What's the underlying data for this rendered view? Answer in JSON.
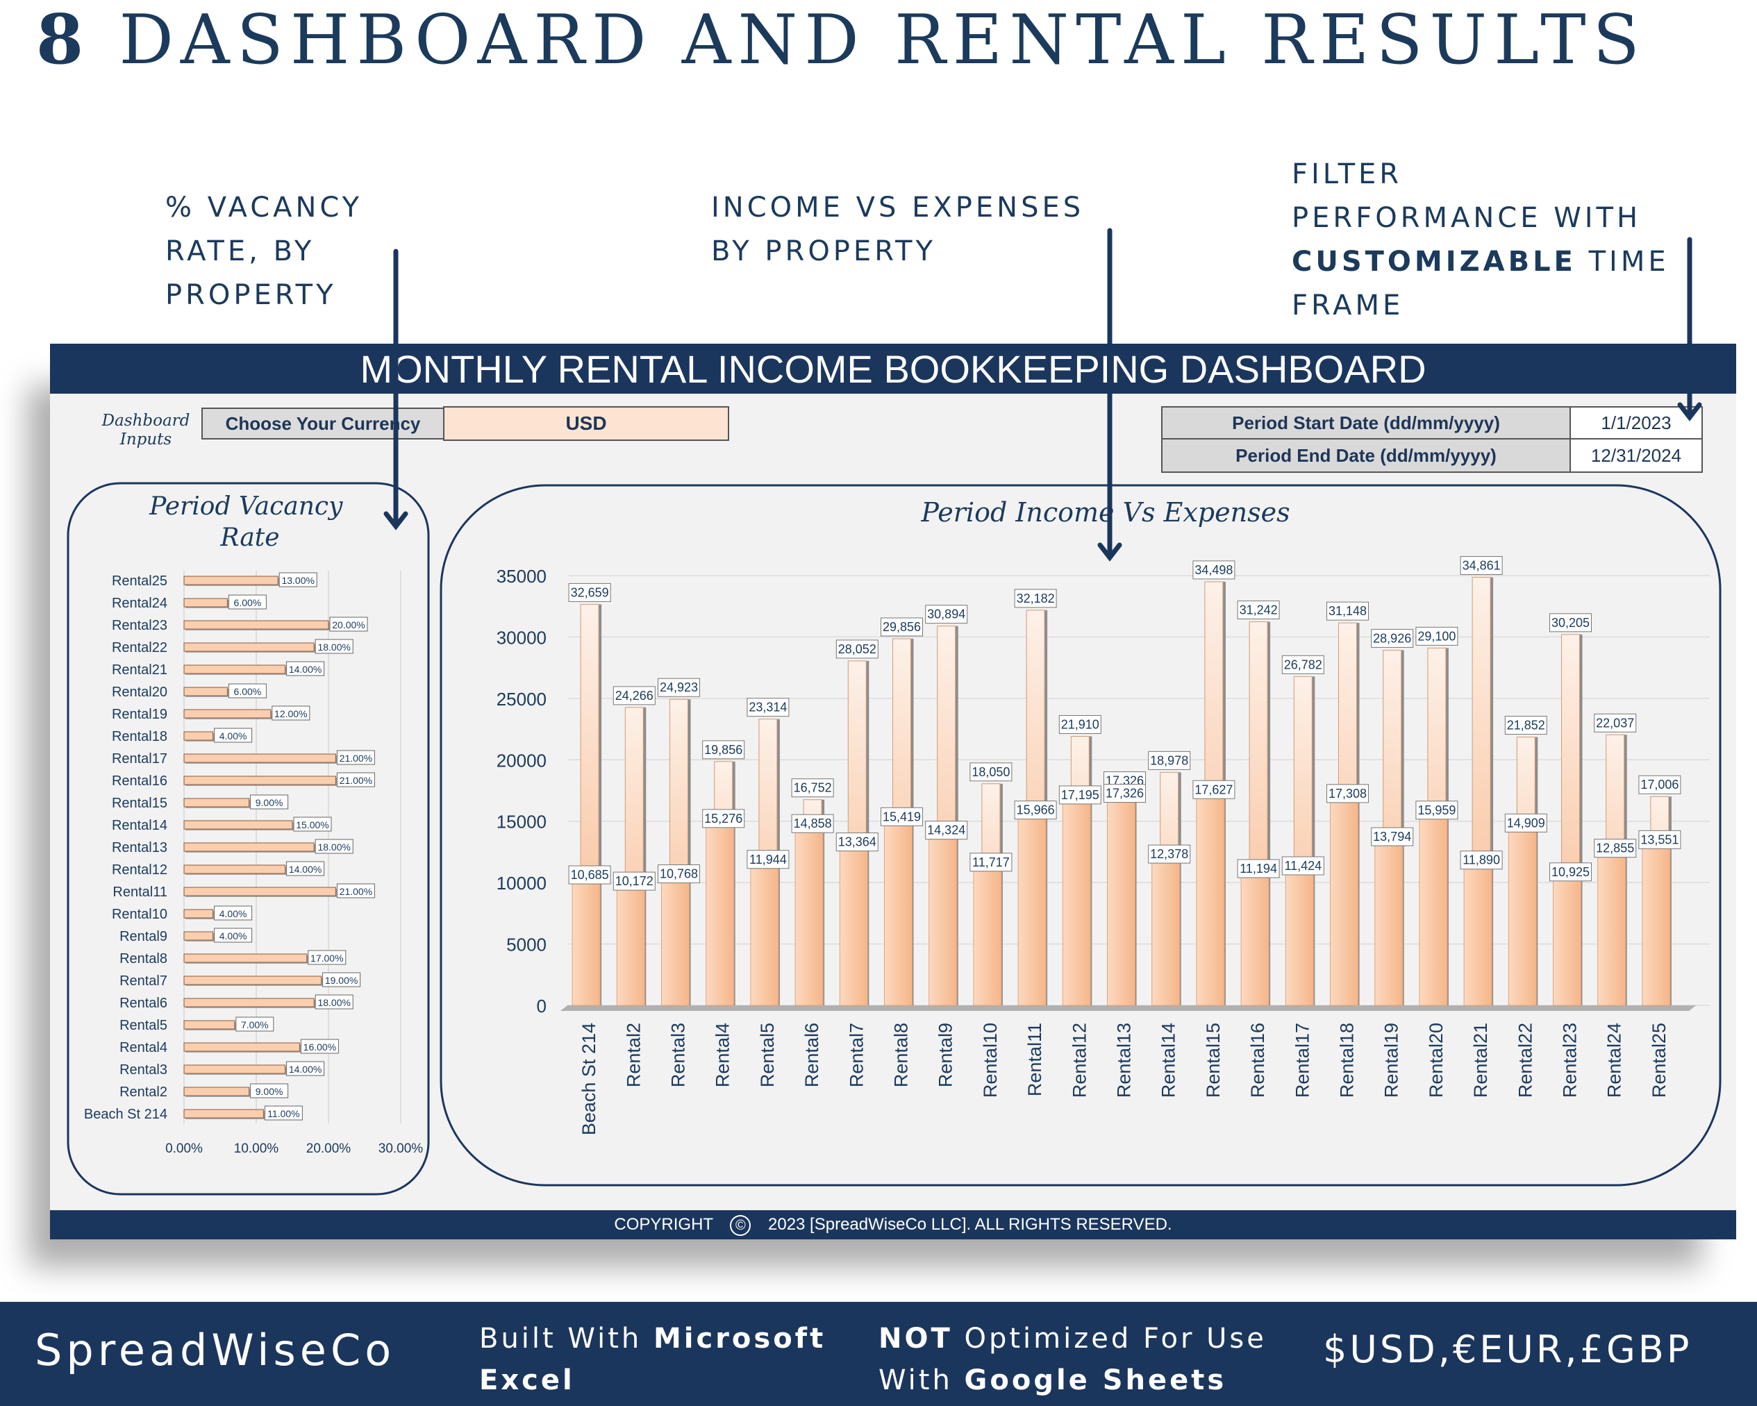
{
  "headline": {
    "number": "8",
    "text": "DASHBOARD AND RENTAL RESULTS"
  },
  "annotations": {
    "vacancy": [
      "% VACANCY",
      "RATE, BY",
      "PROPERTY"
    ],
    "income": [
      "INCOME VS EXPENSES",
      "BY PROPERTY"
    ],
    "filter": {
      "line1": "FILTER",
      "line2": "PERFORMANCE WITH",
      "bold": "CUSTOMIZABLE",
      "rest": " TIME",
      "line4": "FRAME"
    }
  },
  "dashboard": {
    "title": "MONTHLY RENTAL INCOME BOOKKEEPING DASHBOARD",
    "inputs_label_1": "Dashboard",
    "inputs_label_2": "Inputs",
    "currency_label": "Choose Your Currency",
    "currency_value": "USD",
    "start_label": "Period Start Date (dd/mm/yyyy)",
    "start_value": "1/1/2023",
    "end_label": "Period End Date (dd/mm/yyyy)",
    "end_value": "12/31/2024",
    "footer_prefix": "COPYRIGHT",
    "footer_symbol": "©",
    "footer_text": "2023 [SpreadWiseCo LLC]. ALL RIGHTS RESERVED."
  },
  "bottom_bar": {
    "brand": "SpreadWiseCo",
    "built_prefix": "Built With ",
    "built_bold": "Microsoft",
    "built_line2": "Excel",
    "not_bold": "NOT",
    "not_rest": " Optimized For Use",
    "with_prefix": "With ",
    "with_bold": "Google Sheets",
    "currencies": "$USD,€EUR,£GBP"
  },
  "chart_data": [
    {
      "type": "bar",
      "orientation": "horizontal",
      "title": "Period Vacancy Rate",
      "categories": [
        "Beach St 214",
        "Rental2",
        "Rental3",
        "Rental4",
        "Rental5",
        "Rental6",
        "Rental7",
        "Rental8",
        "Rental9",
        "Rental10",
        "Rental11",
        "Rental12",
        "Rental13",
        "Rental14",
        "Rental15",
        "Rental16",
        "Rental17",
        "Rental18",
        "Rental19",
        "Rental20",
        "Rental21",
        "Rental22",
        "Rental23",
        "Rental24",
        "Rental25"
      ],
      "values": [
        11,
        9,
        14,
        16,
        7,
        18,
        19,
        17,
        4,
        4,
        21,
        14,
        18,
        15,
        9,
        21,
        21,
        4,
        12,
        6,
        14,
        18,
        20,
        6,
        13
      ],
      "data_labels": [
        "11.00%",
        "9.00%",
        "14.00%",
        "16.00%",
        "7.00%",
        "18.00%",
        "19.00%",
        "17.00%",
        "4.00%",
        "4.00%",
        "21.00%",
        "14.00%",
        "18.00%",
        "15.00%",
        "9.00%",
        "21.00%",
        "21.00%",
        "4.00%",
        "12.00%",
        "6.00%",
        "14.00%",
        "18.00%",
        "20.00%",
        "6.00%",
        "13.00%"
      ],
      "xlim": [
        0,
        30
      ],
      "ticks": [
        "0.00%",
        "10.00%",
        "20.00%",
        "30.00%"
      ],
      "grid": true
    },
    {
      "type": "bar",
      "title": "Period Income Vs Expenses",
      "categories": [
        "Beach St 214",
        "Rental2",
        "Rental3",
        "Rental4",
        "Rental5",
        "Rental6",
        "Rental7",
        "Rental8",
        "Rental9",
        "Rental10",
        "Rental11",
        "Rental12",
        "Rental13",
        "Rental14",
        "Rental15",
        "Rental16",
        "Rental17",
        "Rental18",
        "Rental19",
        "Rental20",
        "Rental21",
        "Rental22",
        "Rental23",
        "Rental24",
        "Rental25"
      ],
      "series": [
        {
          "values": [
            32659,
            24266,
            24923,
            19856,
            23314,
            16752,
            28052,
            29856,
            30894,
            18050,
            32182,
            21910,
            17326,
            18978,
            34498,
            31242,
            26782,
            31148,
            28926,
            29100,
            34861,
            21852,
            30205,
            22037,
            17006
          ]
        },
        {
          "values": [
            10685,
            10172,
            10768,
            15276,
            11944,
            14858,
            13364,
            15419,
            14324,
            11717,
            15966,
            17195,
            17326,
            12378,
            17627,
            11194,
            11424,
            17308,
            13794,
            15959,
            11890,
            14909,
            10925,
            12855,
            13551
          ]
        }
      ],
      "ylim": [
        0,
        35000
      ],
      "yticks": [
        "0",
        "5000",
        "10000",
        "15000",
        "20000",
        "25000",
        "30000",
        "35000"
      ],
      "grid": true
    }
  ],
  "colors": {
    "navy": "#1b365d",
    "bar_fill": "#f7c09a",
    "bar_light": "#fde4d2",
    "currency_cell": "#fde4d2"
  }
}
